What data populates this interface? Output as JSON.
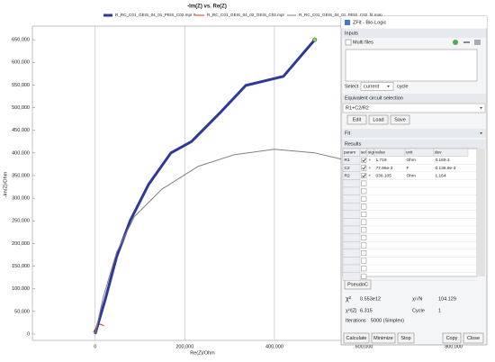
{
  "chart_data": {
    "type": "line",
    "title": "-Im(Z) vs. Re(Z)",
    "x_label": "Re(Z)/Ohm",
    "y_label": "-Im(Z)/Ohm",
    "xlim": [
      -140000,
      870000
    ],
    "ylim": [
      -14000,
      680000
    ],
    "xticks": [
      0,
      {
        "value": 200000,
        "label": "200,000"
      },
      {
        "value": 400000,
        "label": "400,000"
      },
      {
        "value": 600000,
        "label": "600,000"
      },
      {
        "value": 800000,
        "label": "800,000"
      }
    ],
    "yticks": [
      0,
      {
        "value": 50000,
        "label": "50,000"
      },
      {
        "value": 100000,
        "label": "100,000"
      },
      {
        "value": 150000,
        "label": "150,000"
      },
      {
        "value": 200000,
        "label": "200,000"
      },
      {
        "value": 250000,
        "label": "250,000"
      },
      {
        "value": 300000,
        "label": "300,000"
      },
      {
        "value": 350000,
        "label": "350,000"
      },
      {
        "value": 400000,
        "label": "400,000"
      },
      {
        "value": 450000,
        "label": "450,000"
      },
      {
        "value": 500000,
        "label": "500,000"
      },
      {
        "value": 550000,
        "label": "550,000"
      },
      {
        "value": 600000,
        "label": "600,000"
      },
      {
        "value": 650000,
        "label": "650,000"
      }
    ],
    "grid": "x",
    "series": [
      {
        "name": "R_RC_C01_GEIS_04_01_PEIS_C02.mpr #",
        "color": "#2d3a9c",
        "width": 3,
        "x": [
          0,
          24000,
          48000,
          78000,
          119000,
          169000,
          215000,
          279000,
          336000,
          420000,
          490000
        ],
        "values": [
          0,
          81500,
          171000,
          250000,
          330000,
          400000,
          425000,
          489000,
          549000,
          569000,
          650000
        ]
      },
      {
        "name": "R_RC_C01_GEIS_04_02_GEIS_C02.mpr",
        "color": "#c0392b",
        "width": 1,
        "x": [
          -4000,
          4000,
          12000,
          20000
        ],
        "values": [
          4000,
          18000,
          22000,
          18000
        ]
      },
      {
        "name": "R_RC_C01_GEIS_04_01_PEIS_C02_fit.mpp",
        "color": "#808080",
        "width": 1,
        "x": [
          0,
          18000,
          48000,
          88000,
          149000,
          229000,
          310000,
          400000,
          490000,
          551000
        ],
        "values": [
          0,
          81500,
          181000,
          260000,
          320000,
          370000,
          396000,
          408000,
          400000,
          386000
        ]
      }
    ]
  },
  "dialog": {
    "title": "ZFit - Bio-Logic",
    "inputs": {
      "header": "Inputs",
      "multi_files": "Multi files",
      "select_label": "Select",
      "select_value": "current",
      "cycle_label": "cycle"
    },
    "circuit": {
      "header": "Equivalent circuit selection",
      "value": "R1+C2/R2",
      "buttons": [
        "Edit",
        "Load",
        "Save"
      ]
    },
    "fit": "Fit",
    "results": {
      "header": "Results",
      "columns": [
        "param",
        "sel",
        "sign",
        "value",
        "unit",
        "dev"
      ],
      "rows": [
        {
          "param": "R1",
          "sign": "+",
          "value": "1.719",
          "unit": "Ohm",
          "dev": "0.169.3"
        },
        {
          "param": "C2",
          "sign": "+",
          "value": "77.96e-3",
          "unit": "F",
          "dev": "0.136.9e-3"
        },
        {
          "param": "R2",
          "sign": "+",
          "value": "036.105",
          "unit": "Ohm",
          "dev": "1.164"
        }
      ]
    },
    "pseudoc": "PseudoC",
    "stats": {
      "chi2_label": "χ²",
      "chi2": "0.553e12",
      "chin_label": "χ/√N",
      "chin": "104.129",
      "chiz_label": "χ²/|Z|",
      "chiz": "6.315",
      "cycle_label": "Cycle",
      "cycle": "1",
      "iter_label": "Iterations",
      "iter": "5000 (Simplex)"
    },
    "buttons": [
      "Calculate",
      "Minimize",
      "Stop",
      "Copy",
      "Close"
    ]
  }
}
